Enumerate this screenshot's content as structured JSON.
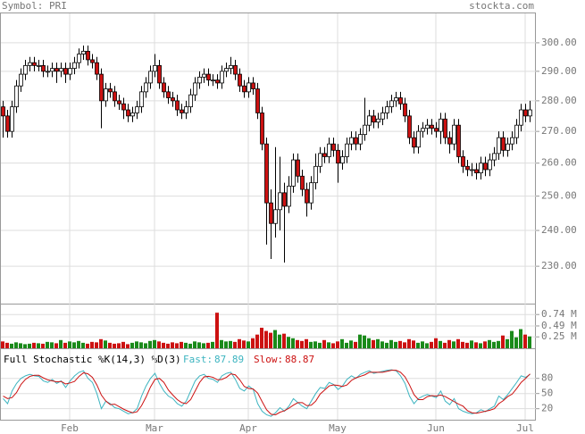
{
  "chart_data": [
    {
      "type": "candlestick",
      "title": "Symbol: PRI",
      "source": "stockta.com",
      "log_scale": true,
      "grid": true,
      "up_color": "#ffffff",
      "down_color": "#cc1111",
      "ylim": [
        220,
        311
      ],
      "yticks": [
        {
          "value": 230,
          "label": "230.00"
        },
        {
          "value": 240,
          "label": "240.00"
        },
        {
          "value": 250,
          "label": "250.00"
        },
        {
          "value": 260,
          "label": "260.00"
        },
        {
          "value": 270,
          "label": "270.00"
        },
        {
          "value": 280,
          "label": "280.00"
        },
        {
          "value": 290,
          "label": "290.00"
        },
        {
          "value": 300,
          "label": "300.00"
        }
      ],
      "xticks": [
        {
          "value": 15,
          "label": "Feb"
        },
        {
          "value": 34,
          "label": "Mar"
        },
        {
          "value": 55,
          "label": "Apr"
        },
        {
          "value": 75,
          "label": "May"
        },
        {
          "value": 97,
          "label": "Jun"
        },
        {
          "value": 117,
          "label": "Jul"
        }
      ],
      "open": [
        278,
        275,
        270,
        278,
        285,
        289,
        292,
        293,
        292,
        292,
        290,
        290,
        291,
        290,
        291,
        289,
        291,
        293,
        296,
        297,
        294,
        293,
        289,
        280,
        284,
        283,
        280,
        279,
        277,
        275,
        276,
        278,
        283,
        286,
        290,
        292,
        286,
        283,
        281,
        280,
        277,
        276,
        278,
        282,
        286,
        288,
        289,
        287,
        287,
        286,
        290,
        291,
        292,
        289,
        285,
        283,
        286,
        284,
        276,
        266,
        248,
        242,
        246,
        251,
        247,
        253,
        261,
        256,
        252,
        248,
        254,
        259,
        263,
        262,
        266,
        264,
        260,
        262,
        266,
        268,
        266,
        269,
        272,
        275,
        273,
        274,
        276,
        278,
        280,
        281,
        279,
        275,
        268,
        265,
        270,
        271,
        272,
        271,
        270,
        274,
        268,
        266,
        272,
        262,
        259,
        258,
        258,
        257,
        260,
        258,
        261,
        263,
        268,
        264,
        266,
        268,
        272,
        277,
        275
      ],
      "high": [
        280,
        277,
        280,
        287,
        291,
        294,
        295,
        295,
        294,
        294,
        292,
        293,
        293,
        293,
        293,
        293,
        295,
        298,
        299,
        299,
        296,
        295,
        291,
        286,
        286,
        285,
        282,
        281,
        279,
        278,
        280,
        285,
        288,
        292,
        296,
        294,
        288,
        285,
        283,
        282,
        279,
        280,
        284,
        288,
        290,
        291,
        291,
        289,
        289,
        292,
        293,
        295,
        294,
        291,
        287,
        288,
        288,
        286,
        278,
        268,
        252,
        265,
        262,
        254,
        256,
        263,
        263,
        258,
        254,
        256,
        263,
        265,
        265,
        268,
        268,
        266,
        264,
        268,
        270,
        270,
        271,
        281,
        277,
        277,
        276,
        278,
        280,
        282,
        283,
        283,
        281,
        277,
        270,
        272,
        273,
        274,
        274,
        273,
        276,
        276,
        270,
        274,
        274,
        264,
        261,
        260,
        260,
        262,
        262,
        263,
        265,
        270,
        270,
        268,
        270,
        274,
        279,
        279,
        280
      ],
      "low": [
        268,
        268,
        268,
        276,
        283,
        287,
        290,
        290,
        290,
        288,
        288,
        288,
        286,
        288,
        286,
        287,
        289,
        291,
        294,
        292,
        291,
        287,
        271,
        278,
        281,
        278,
        277,
        274,
        273,
        273,
        274,
        276,
        281,
        284,
        288,
        284,
        281,
        279,
        278,
        275,
        274,
        274,
        276,
        280,
        284,
        286,
        285,
        285,
        284,
        284,
        288,
        289,
        287,
        283,
        281,
        281,
        282,
        274,
        264,
        236,
        232,
        238,
        240,
        231,
        245,
        251,
        254,
        250,
        244,
        246,
        252,
        257,
        260,
        260,
        262,
        254,
        258,
        260,
        264,
        264,
        264,
        267,
        270,
        271,
        271,
        272,
        274,
        276,
        278,
        277,
        273,
        266,
        263,
        263,
        268,
        269,
        269,
        268,
        266,
        266,
        263,
        264,
        260,
        257,
        256,
        256,
        255,
        255,
        256,
        256,
        259,
        261,
        262,
        262,
        264,
        266,
        270,
        273,
        273
      ],
      "close": [
        275,
        270,
        278,
        285,
        289,
        292,
        293,
        292,
        292,
        290,
        290,
        291,
        290,
        291,
        289,
        291,
        293,
        296,
        297,
        294,
        293,
        289,
        280,
        284,
        283,
        280,
        279,
        277,
        275,
        276,
        278,
        283,
        286,
        290,
        292,
        286,
        283,
        281,
        280,
        277,
        276,
        278,
        282,
        286,
        288,
        289,
        287,
        287,
        286,
        290,
        291,
        292,
        289,
        285,
        283,
        286,
        284,
        276,
        266,
        248,
        242,
        246,
        251,
        247,
        253,
        261,
        256,
        252,
        248,
        254,
        259,
        263,
        262,
        266,
        264,
        260,
        262,
        266,
        268,
        266,
        269,
        272,
        275,
        273,
        274,
        276,
        278,
        280,
        281,
        279,
        275,
        268,
        265,
        270,
        271,
        272,
        271,
        270,
        274,
        268,
        266,
        272,
        262,
        259,
        258,
        258,
        257,
        260,
        258,
        261,
        263,
        268,
        264,
        266,
        268,
        272,
        277,
        275,
        277
      ]
    },
    {
      "type": "bar",
      "up_color": "#1a8a1a",
      "down_color": "#cc1111",
      "grid": true,
      "ylim": [
        0,
        0.94
      ],
      "yticks": [
        {
          "value": 0.25,
          "label": "0.25 M"
        },
        {
          "value": 0.49,
          "label": "0.49 M"
        },
        {
          "value": 0.74,
          "label": "0.74 M"
        }
      ],
      "values": [
        0.15,
        0.12,
        0.1,
        0.13,
        0.11,
        0.09,
        0.1,
        0.12,
        0.11,
        0.1,
        0.14,
        0.13,
        0.11,
        0.18,
        0.12,
        0.15,
        0.13,
        0.16,
        0.12,
        0.1,
        0.14,
        0.13,
        0.2,
        0.17,
        0.12,
        0.1,
        0.11,
        0.14,
        0.09,
        0.12,
        0.15,
        0.13,
        0.11,
        0.16,
        0.18,
        0.15,
        0.12,
        0.1,
        0.13,
        0.11,
        0.14,
        0.12,
        0.1,
        0.15,
        0.13,
        0.11,
        0.12,
        0.14,
        0.78,
        0.18,
        0.15,
        0.16,
        0.14,
        0.2,
        0.17,
        0.15,
        0.22,
        0.3,
        0.45,
        0.38,
        0.34,
        0.4,
        0.3,
        0.32,
        0.25,
        0.22,
        0.18,
        0.16,
        0.2,
        0.14,
        0.15,
        0.12,
        0.18,
        0.13,
        0.11,
        0.15,
        0.2,
        0.12,
        0.17,
        0.14,
        0.3,
        0.28,
        0.22,
        0.18,
        0.2,
        0.15,
        0.12,
        0.18,
        0.14,
        0.16,
        0.13,
        0.2,
        0.17,
        0.12,
        0.15,
        0.11,
        0.14,
        0.22,
        0.16,
        0.12,
        0.18,
        0.15,
        0.2,
        0.14,
        0.12,
        0.17,
        0.13,
        0.11,
        0.15,
        0.18,
        0.14,
        0.16,
        0.28,
        0.2,
        0.38,
        0.24,
        0.42,
        0.3,
        0.26
      ]
    },
    {
      "type": "line",
      "title": "Full Stochastic %K(14,3) %D(3)",
      "grid": true,
      "ylim": [
        0,
        136
      ],
      "yticks": [
        20,
        50,
        80
      ],
      "series": [
        {
          "name": "Fast:",
          "color": "#3cb4c0",
          "values": [
            40,
            30,
            55,
            70,
            80,
            85,
            88,
            85,
            84,
            75,
            72,
            78,
            70,
            75,
            62,
            75,
            85,
            92,
            95,
            80,
            72,
            50,
            20,
            35,
            30,
            22,
            20,
            15,
            10,
            12,
            20,
            45,
            65,
            80,
            90,
            70,
            55,
            45,
            40,
            30,
            25,
            35,
            55,
            75,
            85,
            88,
            80,
            78,
            72,
            85,
            90,
            92,
            78,
            60,
            55,
            65,
            58,
            30,
            15,
            8,
            5,
            12,
            22,
            15,
            25,
            40,
            32,
            25,
            20,
            35,
            50,
            62,
            60,
            72,
            68,
            58,
            65,
            78,
            85,
            80,
            88,
            92,
            95,
            90,
            92,
            94,
            96,
            97,
            95,
            85,
            70,
            45,
            30,
            40,
            45,
            48,
            45,
            42,
            55,
            35,
            28,
            40,
            20,
            15,
            12,
            10,
            12,
            18,
            14,
            20,
            25,
            45,
            38,
            48,
            60,
            72,
            85,
            82,
            87.89
          ]
        },
        {
          "name": "Slow:",
          "color": "#cc1111",
          "values": [
            45,
            40,
            42,
            52,
            68,
            78,
            84,
            86,
            86,
            81,
            77,
            75,
            73,
            74,
            69,
            71,
            74,
            84,
            91,
            89,
            82,
            67,
            47,
            35,
            28,
            29,
            24,
            19,
            15,
            12,
            14,
            26,
            43,
            63,
            78,
            80,
            72,
            57,
            47,
            38,
            32,
            30,
            38,
            55,
            72,
            83,
            84,
            82,
            77,
            78,
            82,
            89,
            87,
            77,
            64,
            60,
            59,
            51,
            34,
            18,
            9,
            8,
            13,
            16,
            21,
            27,
            32,
            32,
            26,
            27,
            35,
            49,
            57,
            65,
            67,
            66,
            64,
            67,
            76,
            81,
            84,
            87,
            92,
            92,
            92,
            92,
            94,
            96,
            96,
            92,
            83,
            67,
            48,
            38,
            38,
            44,
            46,
            45,
            47,
            44,
            39,
            34,
            29,
            25,
            16,
            12,
            11,
            13,
            15,
            17,
            20,
            30,
            36,
            44,
            49,
            60,
            72,
            80,
            88.87
          ]
        }
      ]
    }
  ]
}
